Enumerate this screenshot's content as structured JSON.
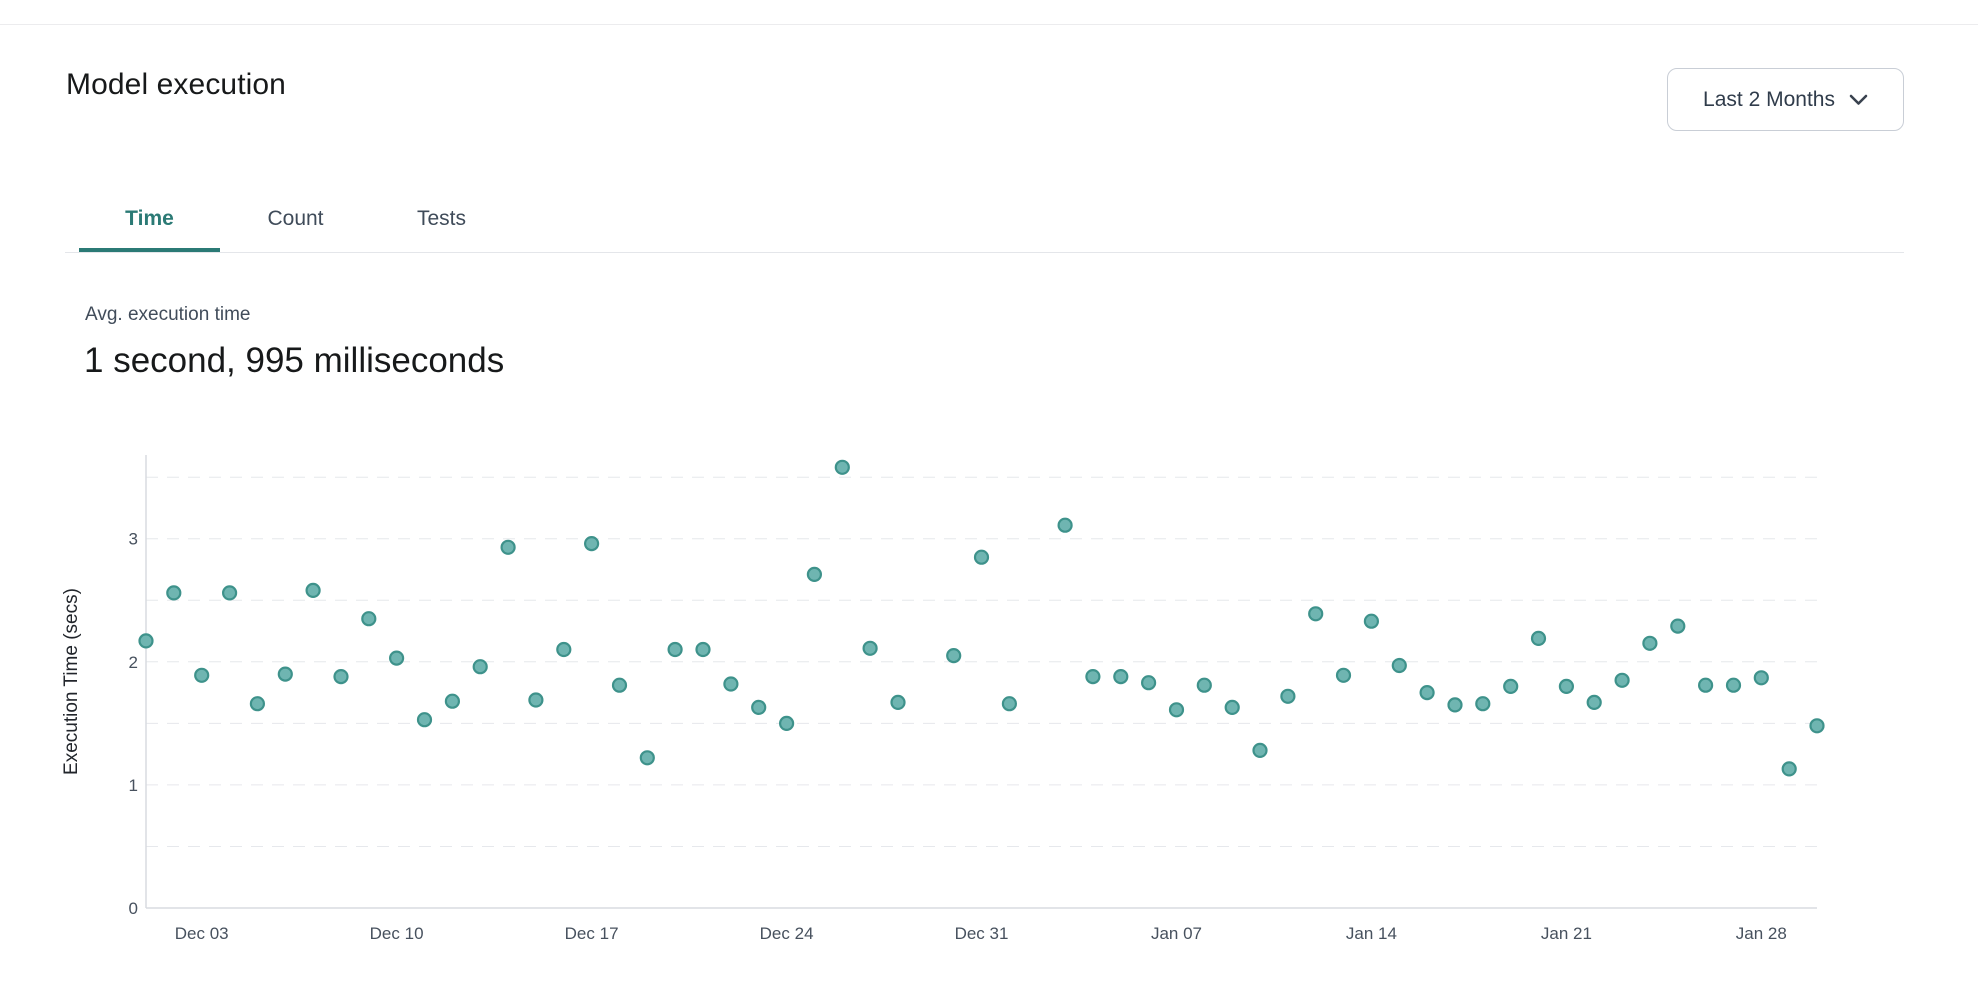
{
  "header": {
    "title": "Model execution",
    "range_dropdown": {
      "value": "Last 2 Months",
      "icon": "chevron-down-icon"
    }
  },
  "tabs": [
    {
      "label": "Time",
      "active": true
    },
    {
      "label": "Count",
      "active": false
    },
    {
      "label": "Tests",
      "active": false
    }
  ],
  "metric": {
    "label": "Avg. execution time",
    "value": "1 second, 995 milliseconds"
  },
  "colors": {
    "accent_teal": "#2b7a75",
    "heading_text": "#17191a",
    "muted_text": "#414c5a",
    "dropdown_border": "#c9ced6",
    "divider": "#e4e6ea"
  },
  "chart_data": {
    "type": "scatter",
    "title": "",
    "xlabel": "",
    "ylabel": "Execution Time (secs)",
    "ylim": [
      0,
      3.68
    ],
    "grid_step": 0.5,
    "grid": "horizontal-dashed",
    "legend": "none",
    "x_domain": {
      "start": "Dec 01",
      "end": "Jan 30",
      "days": 60
    },
    "x_ticks": [
      {
        "label": "Dec 03",
        "day": 2
      },
      {
        "label": "Dec 10",
        "day": 9
      },
      {
        "label": "Dec 17",
        "day": 16
      },
      {
        "label": "Dec 24",
        "day": 23
      },
      {
        "label": "Dec 31",
        "day": 30
      },
      {
        "label": "Jan 07",
        "day": 37
      },
      {
        "label": "Jan 14",
        "day": 44
      },
      {
        "label": "Jan 21",
        "day": 51
      },
      {
        "label": "Jan 28",
        "day": 58
      }
    ],
    "y_ticks": [
      {
        "label": "0",
        "value": 0
      },
      {
        "label": "1",
        "value": 1
      },
      {
        "label": "2",
        "value": 2
      },
      {
        "label": "3",
        "value": 3
      }
    ],
    "colors": {
      "point_fill": "#6fb5b1",
      "point_stroke": "#3e928b",
      "grid_line": "#e6e8ec",
      "axis_line": "#d8dbe0",
      "tick_text": "#47515e",
      "ylabel_text": "#21252b"
    },
    "points": [
      {
        "date": "Dec 01",
        "day": 0,
        "secs": 2.17
      },
      {
        "date": "Dec 02",
        "day": 1,
        "secs": 2.56
      },
      {
        "date": "Dec 03",
        "day": 2,
        "secs": 1.89
      },
      {
        "date": "Dec 04",
        "day": 3,
        "secs": 2.56
      },
      {
        "date": "Dec 05",
        "day": 4,
        "secs": 1.66
      },
      {
        "date": "Dec 06",
        "day": 5,
        "secs": 1.9
      },
      {
        "date": "Dec 07",
        "day": 6,
        "secs": 2.58
      },
      {
        "date": "Dec 08",
        "day": 7,
        "secs": 1.88
      },
      {
        "date": "Dec 09",
        "day": 8,
        "secs": 2.35
      },
      {
        "date": "Dec 10",
        "day": 9,
        "secs": 2.03
      },
      {
        "date": "Dec 11",
        "day": 10,
        "secs": 1.53
      },
      {
        "date": "Dec 12",
        "day": 11,
        "secs": 1.68
      },
      {
        "date": "Dec 13",
        "day": 12,
        "secs": 1.96
      },
      {
        "date": "Dec 14",
        "day": 13,
        "secs": 2.93
      },
      {
        "date": "Dec 15",
        "day": 14,
        "secs": 1.69
      },
      {
        "date": "Dec 16",
        "day": 15,
        "secs": 2.1
      },
      {
        "date": "Dec 17",
        "day": 16,
        "secs": 2.96
      },
      {
        "date": "Dec 18",
        "day": 17,
        "secs": 1.81
      },
      {
        "date": "Dec 19",
        "day": 18,
        "secs": 1.22
      },
      {
        "date": "Dec 20",
        "day": 19,
        "secs": 2.1
      },
      {
        "date": "Dec 21",
        "day": 20,
        "secs": 2.1
      },
      {
        "date": "Dec 22",
        "day": 21,
        "secs": 1.82
      },
      {
        "date": "Dec 23",
        "day": 22,
        "secs": 1.63
      },
      {
        "date": "Dec 24",
        "day": 23,
        "secs": 1.5
      },
      {
        "date": "Dec 25",
        "day": 24,
        "secs": 2.71
      },
      {
        "date": "Dec 26",
        "day": 25,
        "secs": 3.58
      },
      {
        "date": "Dec 27",
        "day": 26,
        "secs": 2.11
      },
      {
        "date": "Dec 28",
        "day": 27,
        "secs": 1.67
      },
      {
        "date": "Dec 30",
        "day": 29,
        "secs": 2.05
      },
      {
        "date": "Dec 31",
        "day": 30,
        "secs": 2.85
      },
      {
        "date": "Jan 01",
        "day": 31,
        "secs": 1.66
      },
      {
        "date": "Jan 03",
        "day": 33,
        "secs": 3.11
      },
      {
        "date": "Jan 04",
        "day": 34,
        "secs": 1.88
      },
      {
        "date": "Jan 05",
        "day": 35,
        "secs": 1.88
      },
      {
        "date": "Jan 06",
        "day": 36,
        "secs": 1.83
      },
      {
        "date": "Jan 07",
        "day": 37,
        "secs": 1.61
      },
      {
        "date": "Jan 08",
        "day": 38,
        "secs": 1.81
      },
      {
        "date": "Jan 09",
        "day": 39,
        "secs": 1.63
      },
      {
        "date": "Jan 10",
        "day": 40,
        "secs": 1.28
      },
      {
        "date": "Jan 11",
        "day": 41,
        "secs": 1.72
      },
      {
        "date": "Jan 12",
        "day": 42,
        "secs": 2.39
      },
      {
        "date": "Jan 13",
        "day": 43,
        "secs": 1.89
      },
      {
        "date": "Jan 14",
        "day": 44,
        "secs": 2.33
      },
      {
        "date": "Jan 15",
        "day": 45,
        "secs": 1.97
      },
      {
        "date": "Jan 16",
        "day": 46,
        "secs": 1.75
      },
      {
        "date": "Jan 17",
        "day": 47,
        "secs": 1.65
      },
      {
        "date": "Jan 18",
        "day": 48,
        "secs": 1.66
      },
      {
        "date": "Jan 19",
        "day": 49,
        "secs": 1.8
      },
      {
        "date": "Jan 20",
        "day": 50,
        "secs": 2.19
      },
      {
        "date": "Jan 21",
        "day": 51,
        "secs": 1.8
      },
      {
        "date": "Jan 22",
        "day": 52,
        "secs": 1.67
      },
      {
        "date": "Jan 23",
        "day": 53,
        "secs": 1.85
      },
      {
        "date": "Jan 24",
        "day": 54,
        "secs": 2.15
      },
      {
        "date": "Jan 25",
        "day": 55,
        "secs": 2.29
      },
      {
        "date": "Jan 26",
        "day": 56,
        "secs": 1.81
      },
      {
        "date": "Jan 27",
        "day": 57,
        "secs": 1.81
      },
      {
        "date": "Jan 28",
        "day": 58,
        "secs": 1.87
      },
      {
        "date": "Jan 29",
        "day": 59,
        "secs": 1.13
      },
      {
        "date": "Jan 30",
        "day": 60,
        "secs": 1.48
      }
    ]
  }
}
